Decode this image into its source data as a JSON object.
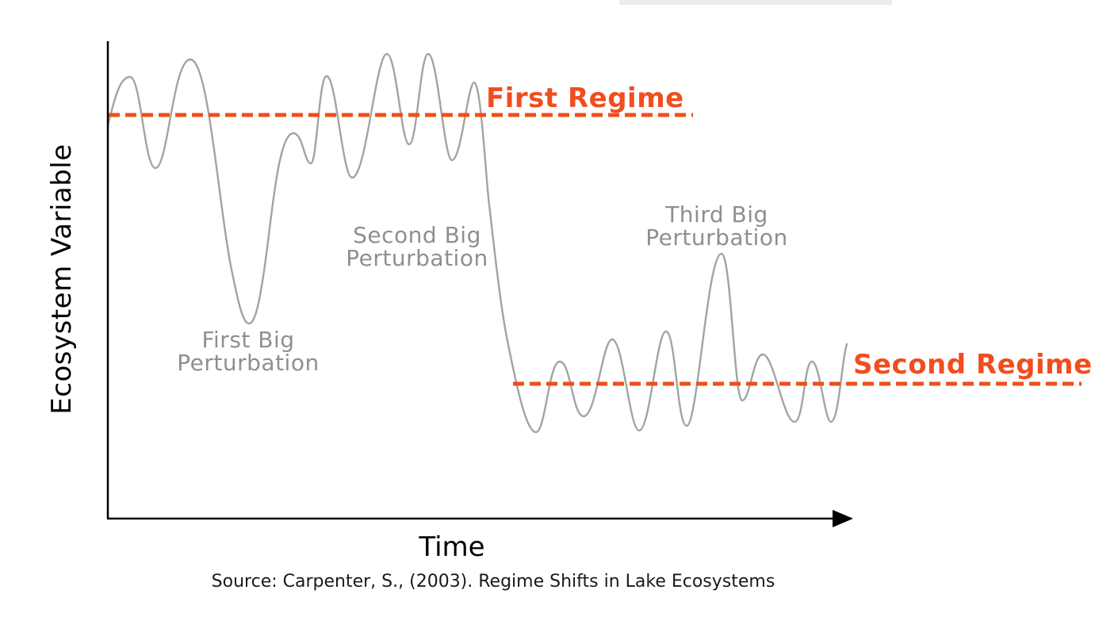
{
  "colors": {
    "axis": "#000000",
    "curve": "#a3a3a3",
    "regime": "#f04e1e",
    "annotation": "#8f8f8f"
  },
  "axes": {
    "y_label": "Ecosystem Variable",
    "x_label": "Time"
  },
  "regimes": [
    {
      "label": "First Regime"
    },
    {
      "label": "Second Regime"
    }
  ],
  "annotations": [
    {
      "line1": "First Big",
      "line2": "Perturbation"
    },
    {
      "line1": "Second Big",
      "line2": "Perturbation"
    },
    {
      "line1": "Third Big",
      "line2": "Perturbation"
    }
  ],
  "source": "Source: Carpenter, S., (2003). Regime Shifts in Lake Ecosystems"
}
